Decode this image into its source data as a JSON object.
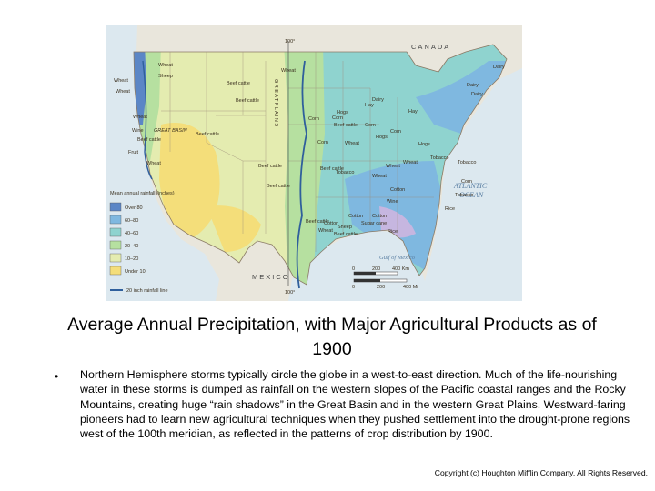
{
  "map": {
    "country_labels": {
      "canada": "CANADA",
      "mexico": "MEXICO"
    },
    "meridian_label": "100°",
    "meridian_label_bottom": "100°",
    "great_plains_label": "G R E A T  P L A I N S",
    "great_basin_label": "GREAT BASIN",
    "ocean_label_line1": "ATLANTIC",
    "ocean_label_line2": "OCEAN",
    "gulf_label": "Gulf of Mexico",
    "products": [
      "Wheat",
      "Sheep",
      "Wheat",
      "Beef cattle",
      "Wheat",
      "Wheat",
      "Dairy",
      "Dairy",
      "Hay",
      "Wheat",
      "Wine",
      "Beef cattle",
      "Fruit",
      "Beef cattle",
      "Beef cattle",
      "Wheat",
      "Corn",
      "Hogs",
      "Corn",
      "Beef cattle",
      "Corn",
      "Wheat",
      "Corn",
      "Hogs",
      "Hay",
      "Dairy",
      "Corn",
      "Hogs",
      "Wheat",
      "Tobacco",
      "Beef cattle",
      "Wheat",
      "Wheat",
      "Tobacco",
      "Corn",
      "Tobacco",
      "Cotton",
      "Rice",
      "Wine",
      "Beef cattle",
      "Beef cattle",
      "Cotton",
      "Cotton",
      "Sugar cane",
      "Sheep",
      "Rice",
      "Cotton",
      "Beef cattle",
      "Wheat",
      "Beef cattle",
      "Dairy",
      "Tobacco"
    ],
    "legend": {
      "title": "Mean annual rainfall (inches)",
      "items": [
        {
          "label": "Over 80",
          "color": "#5b86c6"
        },
        {
          "label": "60–80",
          "color": "#7fb8e0"
        },
        {
          "label": "40–60",
          "color": "#8fd3cf"
        },
        {
          "label": "20–40",
          "color": "#b6e0a0"
        },
        {
          "label": "10–20",
          "color": "#e4ecb0"
        },
        {
          "label": "Under 10",
          "color": "#f4de7a"
        }
      ],
      "line_label": "20 inch rainfall line",
      "line_color": "#2f5f9c"
    },
    "scale": {
      "km_ticks": [
        "0",
        "200",
        "400 Km"
      ],
      "mi_ticks": [
        "0",
        "200",
        "400 Mi"
      ]
    }
  },
  "slide": {
    "title": "Average Annual Precipitation, with Major Agricultural Products as of 1900",
    "bullet": "•",
    "body": "Northern Hemisphere storms typically circle the globe in a west-to-east direction. Much of the life-nourishing water in these storms is dumped as rainfall on the western slopes of the Pacific coastal ranges and the Rocky Mountains, creating huge “rain shadows” in the Great Basin and in the western Great Plains. Westward-faring pioneers had to learn new agricultural techniques when they pushed settlement into the drought-prone regions west of the 100th meridian, as reflected in the patterns of crop distribution by 1900.",
    "copyright": "Copyright (c) Houghton Mifflin Company. All Rights Reserved."
  }
}
